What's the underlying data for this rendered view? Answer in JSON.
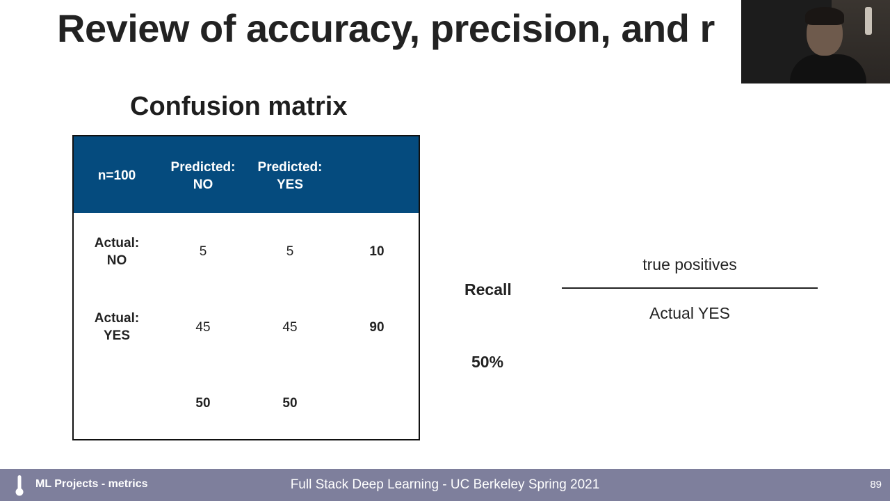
{
  "slide": {
    "title": "Review of accuracy, precision, and r",
    "section_title": "Confusion matrix"
  },
  "matrix": {
    "corner": "n=100",
    "col_headers": [
      {
        "line1": "Predicted:",
        "line2": "NO"
      },
      {
        "line1": "Predicted:",
        "line2": "YES"
      }
    ],
    "rows": [
      {
        "label_line1": "Actual:",
        "label_line2": "NO",
        "values": [
          "5",
          "5"
        ],
        "total": "10"
      },
      {
        "label_line1": "Actual:",
        "label_line2": "YES",
        "values": [
          "45",
          "45"
        ],
        "total": "90"
      }
    ],
    "col_totals": [
      "50",
      "50"
    ],
    "header_color": "#054b7e"
  },
  "recall": {
    "label": "Recall",
    "value": "50%",
    "numerator": "true positives",
    "denominator": "Actual YES"
  },
  "footer": {
    "left_label": "ML Projects - metrics",
    "center_label": "Full Stack Deep Learning - UC Berkeley Spring 2021",
    "page_number": "89",
    "bar_color": "#7e7f9c",
    "icon": "thermometer-icon"
  }
}
